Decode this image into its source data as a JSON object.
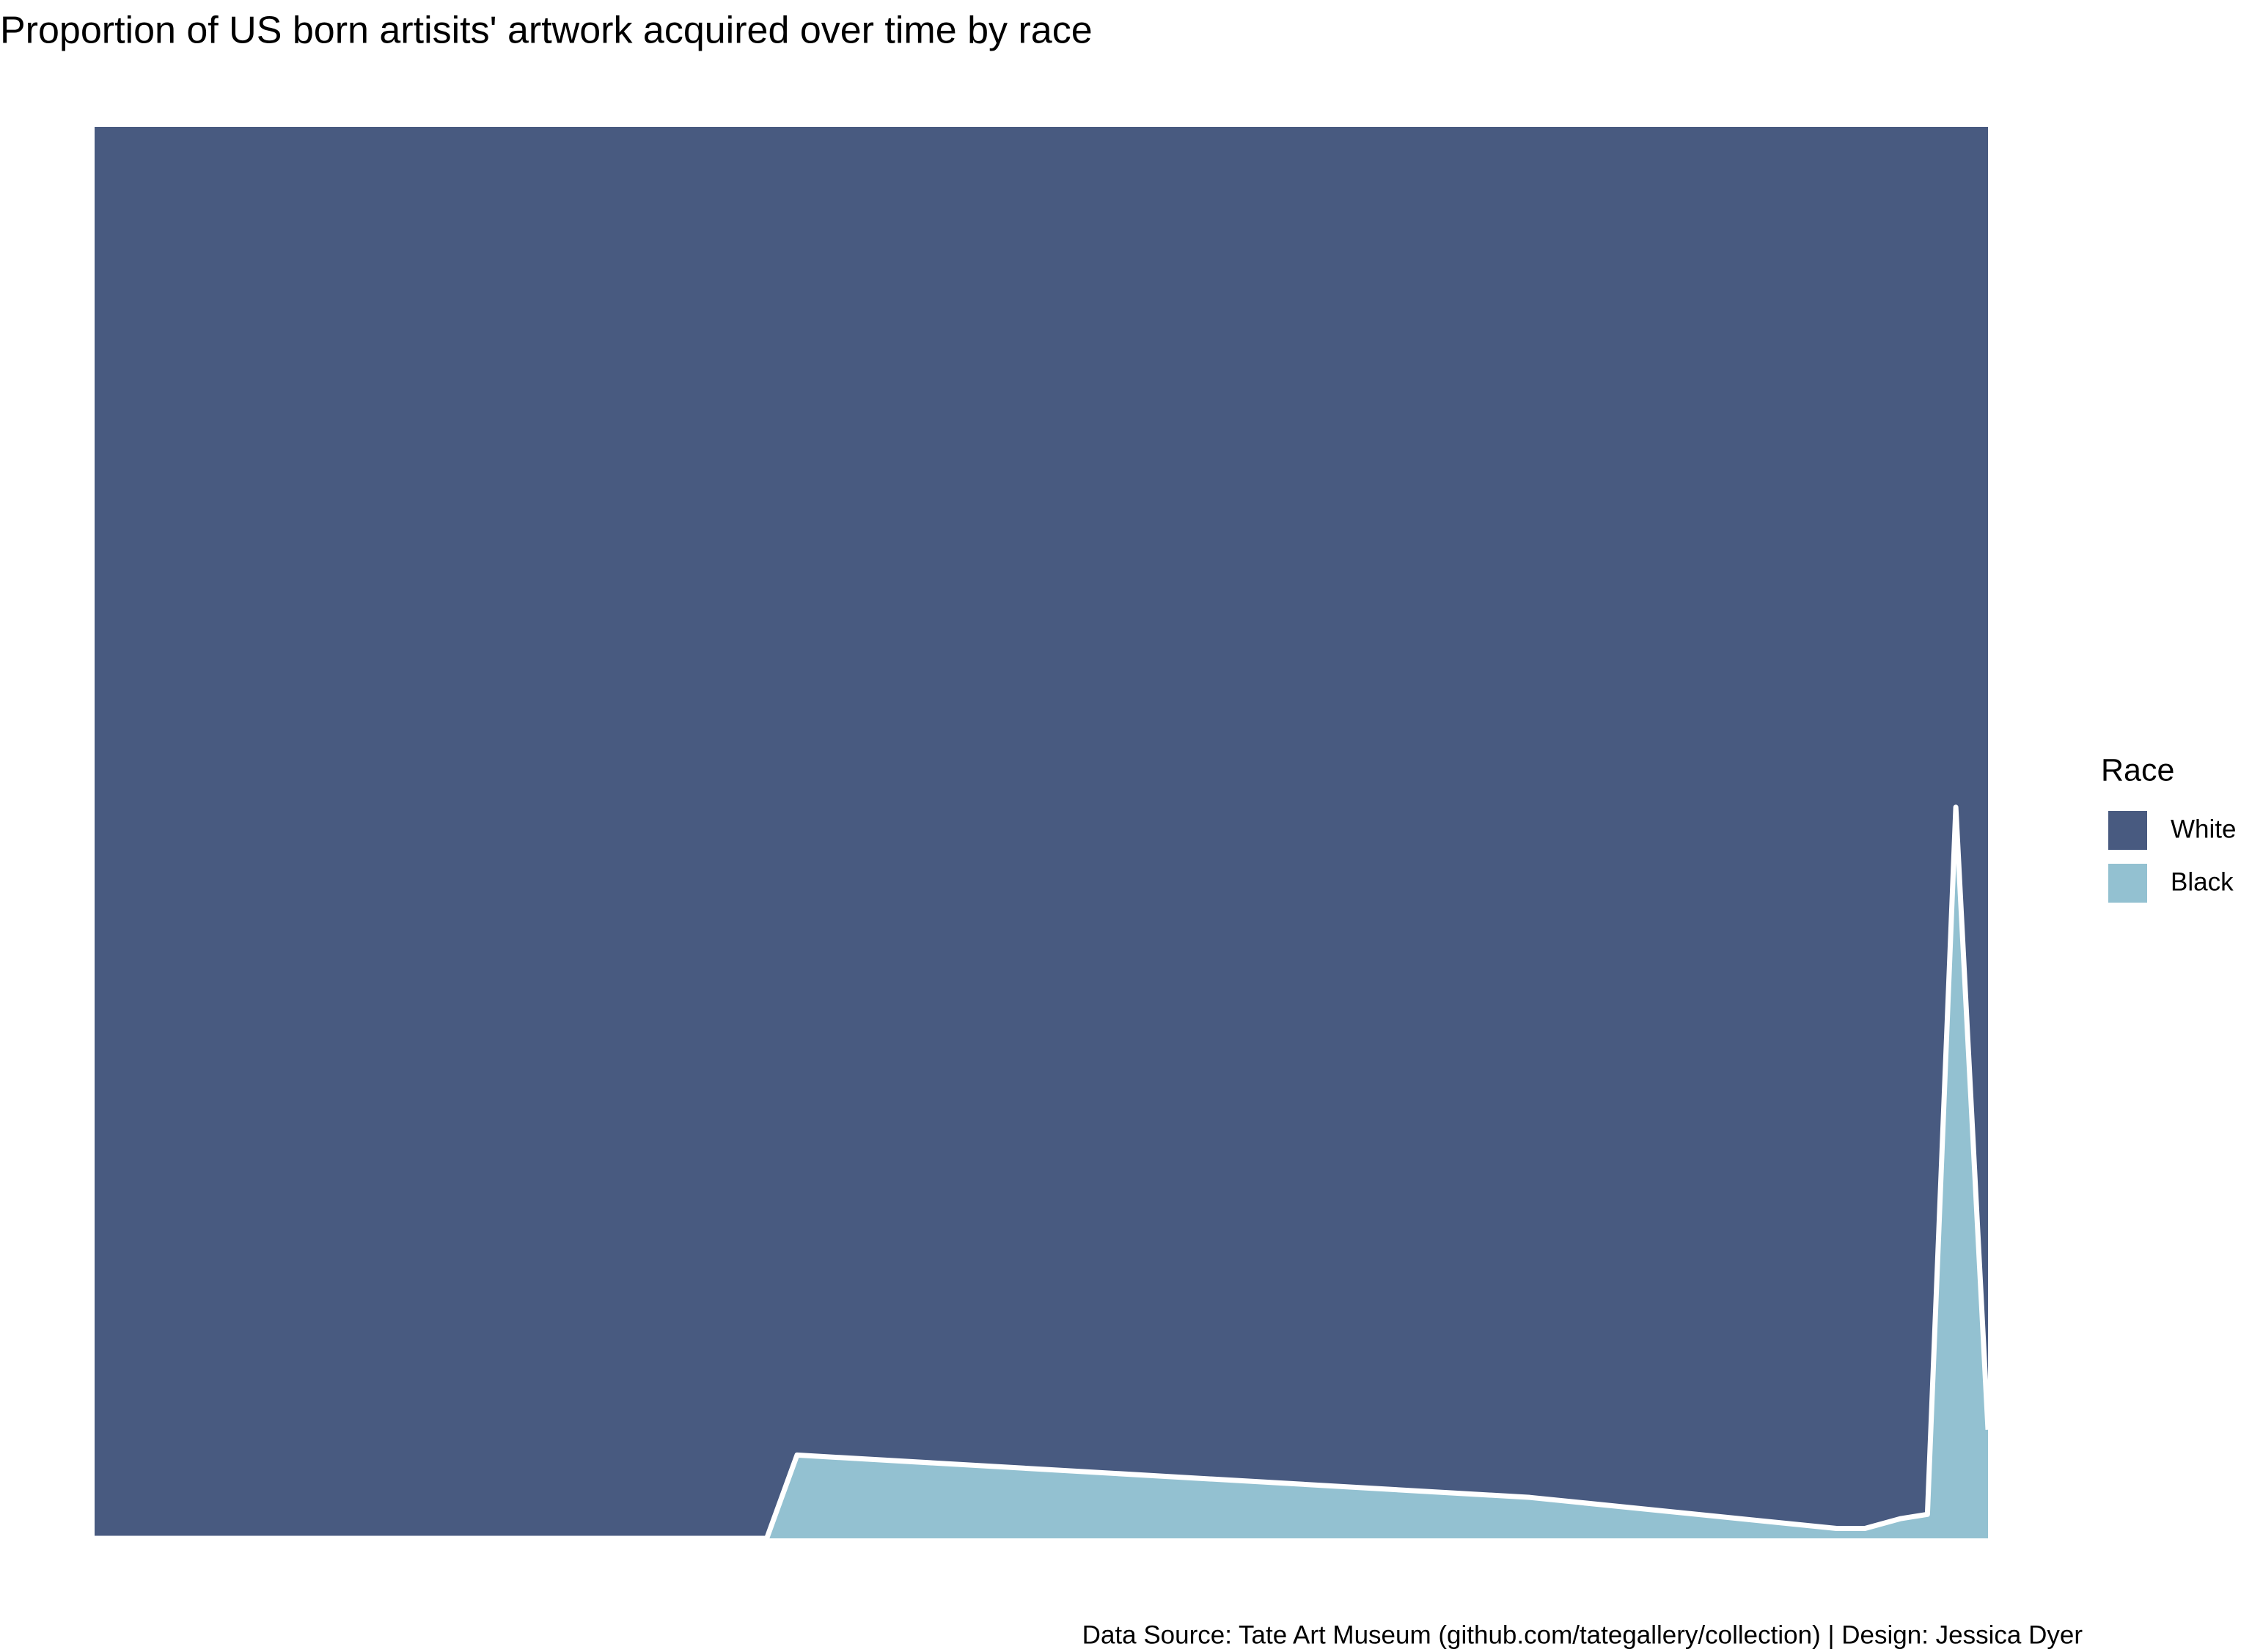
{
  "chart_data": {
    "type": "stacked-area",
    "title": "Proportion of US born artisits' artwork acquired over time by race",
    "caption": "Data Source: Tate Art Museum (github.com/tategallery/collection) | Design: Jessica Dyer",
    "legend_title": "Race",
    "legend_position": "right",
    "x": [
      0,
      35.5,
      37.1,
      75.8,
      92.0,
      93.5,
      95.4,
      96.8,
      98.3,
      100
    ],
    "xlim": [
      0,
      100
    ],
    "ylim": [
      0,
      1
    ],
    "series": [
      {
        "name": "White",
        "color": "#485a80",
        "values": [
          1,
          1,
          0.941,
          0.971,
          0.993,
          0.993,
          0.986,
          0.983,
          0.482,
          0.923
        ]
      },
      {
        "name": "Black",
        "color": "#93c1d1",
        "values": [
          0,
          0,
          0.059,
          0.029,
          0.007,
          0.007,
          0.014,
          0.017,
          0.518,
          0.077
        ]
      }
    ]
  }
}
